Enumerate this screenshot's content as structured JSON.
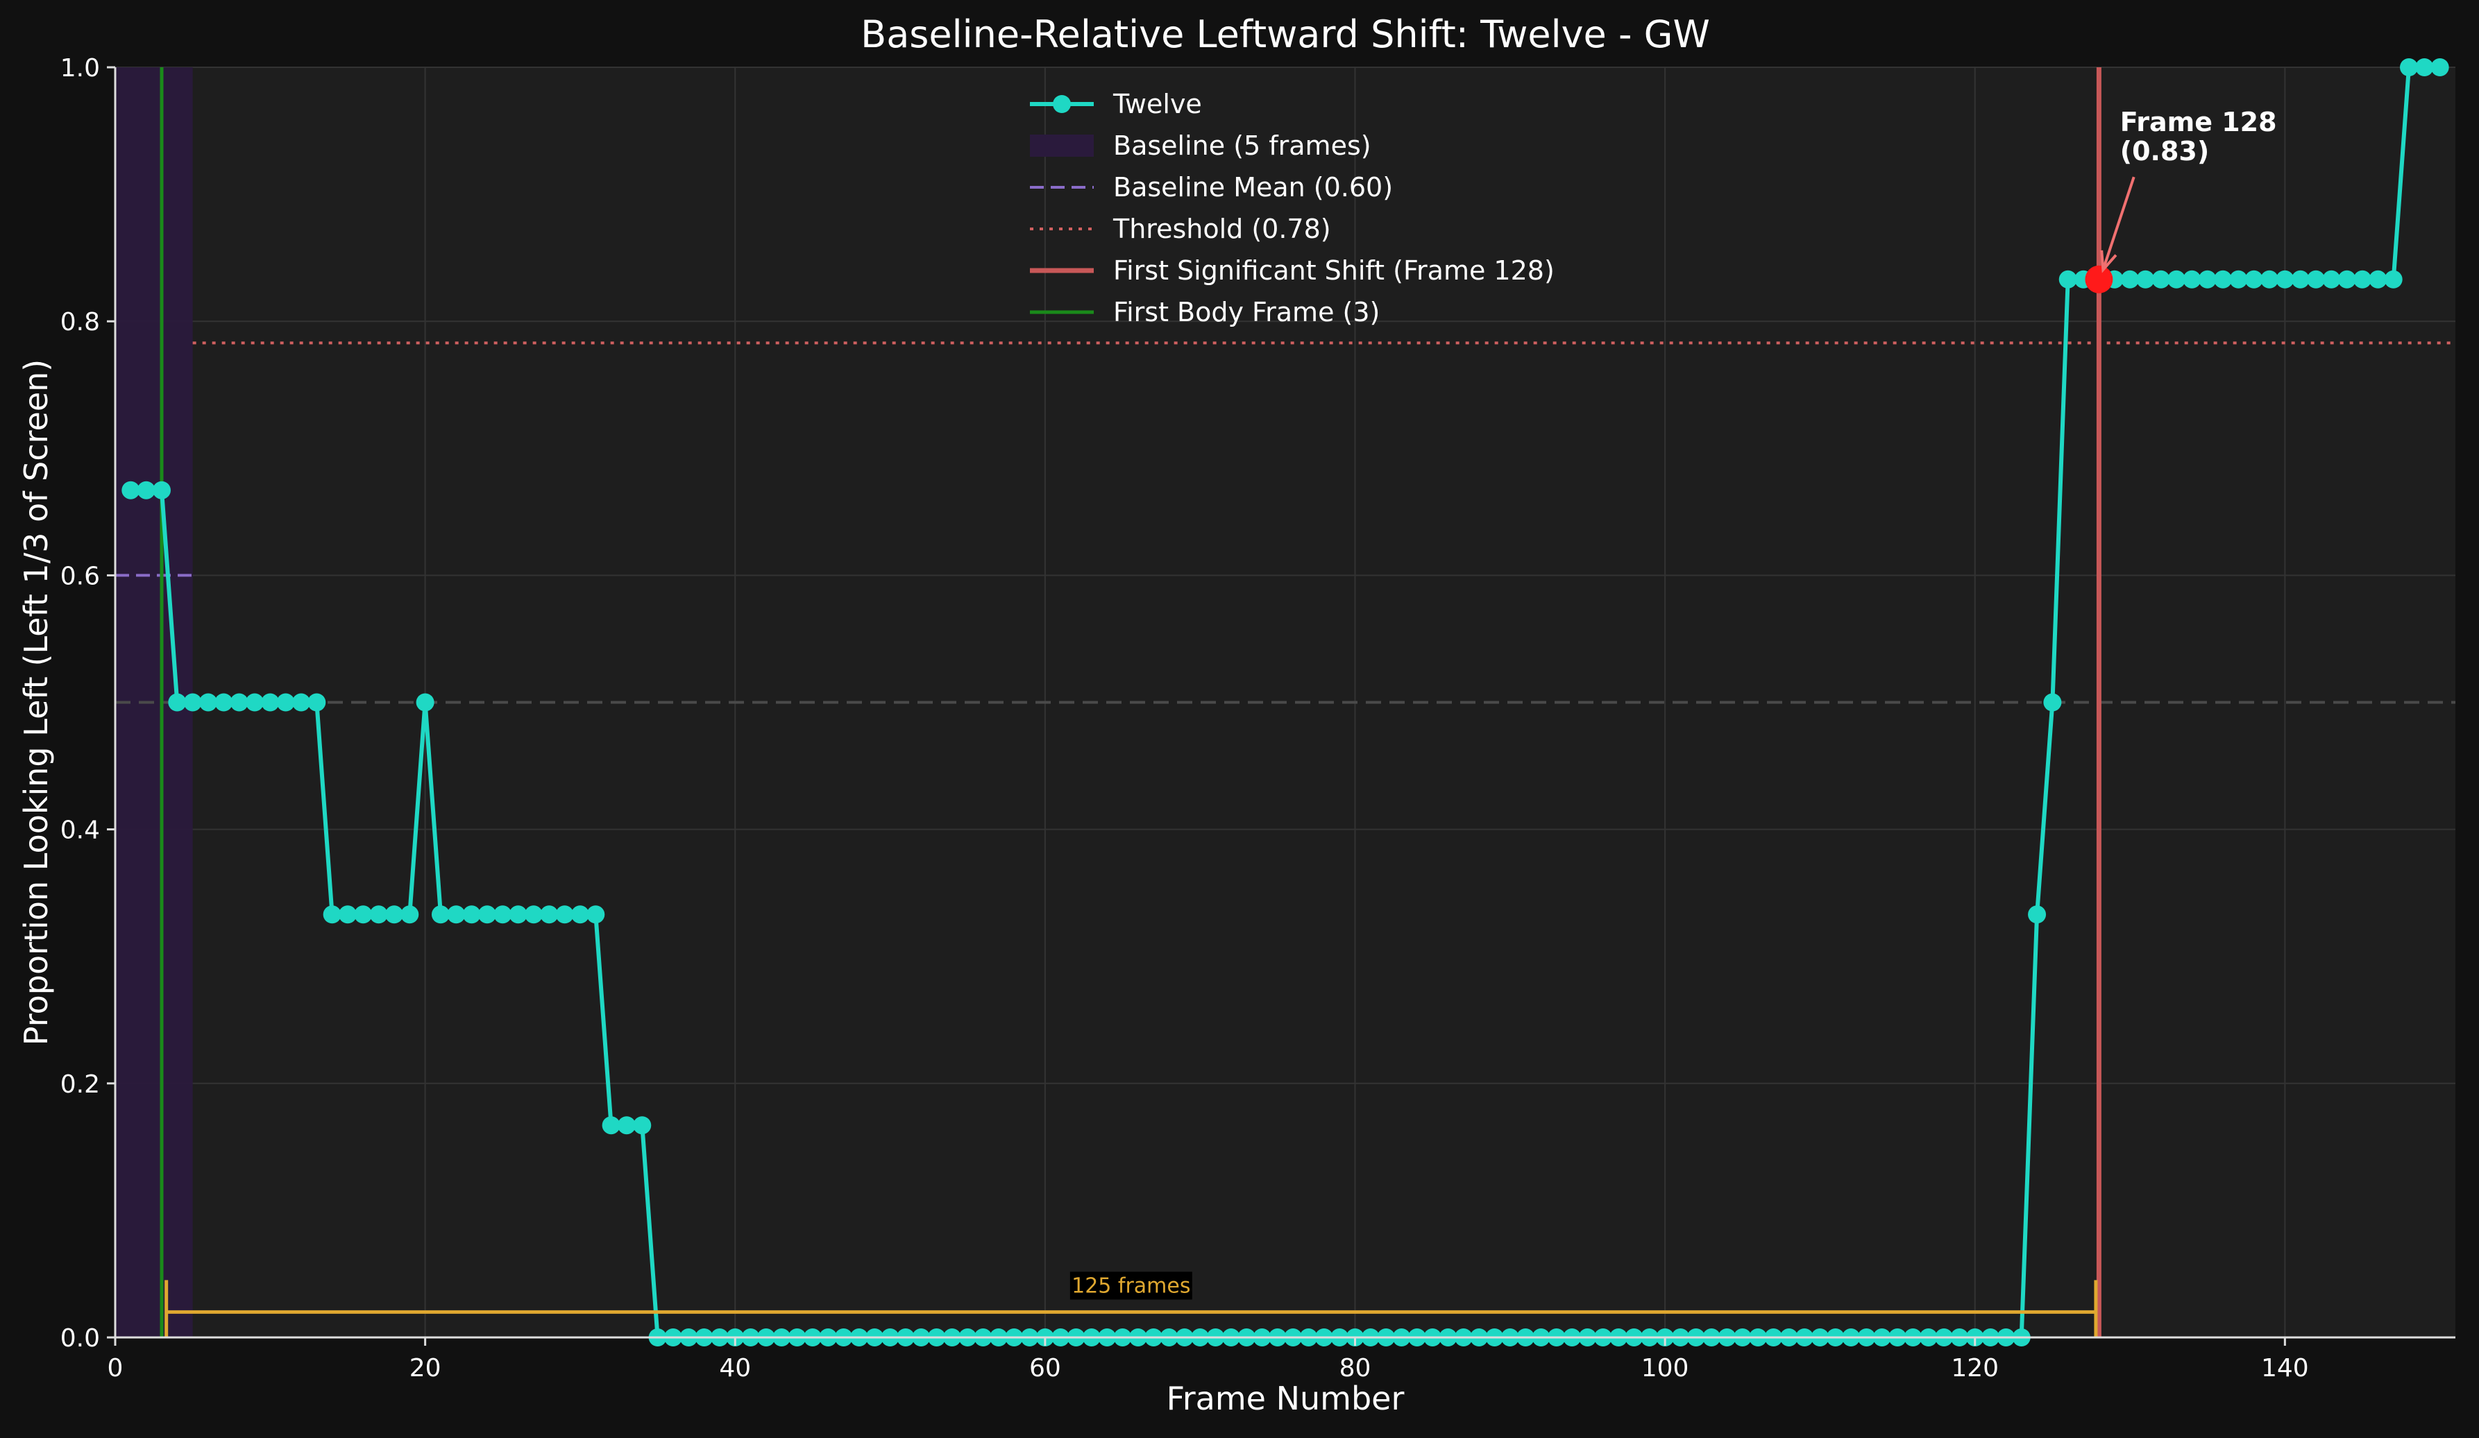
{
  "chart_data": {
    "type": "line",
    "title": "Baseline-Relative Leftward Shift: Twelve - GW",
    "xlabel": "Frame Number",
    "ylabel": "Proportion Looking Left (Left 1/3 of Screen)",
    "xlim": [
      0,
      151
    ],
    "ylim": [
      0,
      1
    ],
    "xticks": [
      0,
      20,
      40,
      60,
      80,
      100,
      120,
      140
    ],
    "yticks": [
      "0.0",
      "0.2",
      "0.4",
      "0.6",
      "0.8",
      "1.0"
    ],
    "grid": true,
    "legend_position": "top-center",
    "series": [
      {
        "name": "Twelve",
        "color": "#1fd8c4",
        "x": [
          1,
          2,
          3,
          4,
          5,
          6,
          7,
          8,
          9,
          10,
          11,
          12,
          13,
          14,
          15,
          16,
          17,
          18,
          19,
          20,
          21,
          22,
          23,
          24,
          25,
          26,
          27,
          28,
          29,
          30,
          31,
          32,
          33,
          34,
          35,
          36,
          37,
          38,
          39,
          40,
          41,
          42,
          43,
          44,
          45,
          46,
          47,
          48,
          49,
          50,
          51,
          52,
          53,
          54,
          55,
          56,
          57,
          58,
          59,
          60,
          61,
          62,
          63,
          64,
          65,
          66,
          67,
          68,
          69,
          70,
          71,
          72,
          73,
          74,
          75,
          76,
          77,
          78,
          79,
          80,
          81,
          82,
          83,
          84,
          85,
          86,
          87,
          88,
          89,
          90,
          91,
          92,
          93,
          94,
          95,
          96,
          97,
          98,
          99,
          100,
          101,
          102,
          103,
          104,
          105,
          106,
          107,
          108,
          109,
          110,
          111,
          112,
          113,
          114,
          115,
          116,
          117,
          118,
          119,
          120,
          121,
          122,
          123,
          124,
          125,
          126,
          127,
          128,
          129,
          130,
          131,
          132,
          133,
          134,
          135,
          136,
          137,
          138,
          139,
          140,
          141,
          142,
          143,
          144,
          145,
          146,
          147,
          148,
          149,
          150
        ],
        "y": [
          0.667,
          0.667,
          0.667,
          0.5,
          0.5,
          0.5,
          0.5,
          0.5,
          0.5,
          0.5,
          0.5,
          0.5,
          0.5,
          0.333,
          0.333,
          0.333,
          0.333,
          0.333,
          0.333,
          0.5,
          0.333,
          0.333,
          0.333,
          0.333,
          0.333,
          0.333,
          0.333,
          0.333,
          0.333,
          0.333,
          0.333,
          0.167,
          0.167,
          0.167,
          0,
          0,
          0,
          0,
          0,
          0,
          0,
          0,
          0,
          0,
          0,
          0,
          0,
          0,
          0,
          0,
          0,
          0,
          0,
          0,
          0,
          0,
          0,
          0,
          0,
          0,
          0,
          0,
          0,
          0,
          0,
          0,
          0,
          0,
          0,
          0,
          0,
          0,
          0,
          0,
          0,
          0,
          0,
          0,
          0,
          0,
          0,
          0,
          0,
          0,
          0,
          0,
          0,
          0,
          0,
          0,
          0,
          0,
          0,
          0,
          0,
          0,
          0,
          0,
          0,
          0,
          0,
          0,
          0,
          0,
          0,
          0,
          0,
          0,
          0,
          0,
          0,
          0,
          0,
          0,
          0,
          0,
          0,
          0,
          0,
          0,
          0,
          0,
          0,
          0.333,
          0.5,
          0.833,
          0.833,
          0.833,
          0.833,
          0.833,
          0.833,
          0.833,
          0.833,
          0.833,
          0.833,
          0.833,
          0.833,
          0.833,
          0.833,
          0.833,
          0.833,
          0.833,
          0.833,
          0.833,
          0.833,
          0.833,
          0.833,
          1,
          1,
          1
        ]
      }
    ],
    "baseline": {
      "label": "Baseline (5 frames)",
      "x_start": 0,
      "x_end": 5,
      "color": "#2a1a3c"
    },
    "baseline_mean": {
      "label": "Baseline Mean (0.60)",
      "value": 0.6,
      "x_start": 0,
      "x_end": 5,
      "color": "#8a6cc8"
    },
    "threshold": {
      "label": "Threshold (0.78)",
      "value": 0.783,
      "x_start": 5,
      "x_end": 151,
      "color": "#d06060"
    },
    "reference_line": {
      "value": 0.5,
      "color": "#4a4a4a"
    },
    "first_shift": {
      "label": "First Significant Shift (Frame 128)",
      "frame": 128,
      "value": 0.833,
      "color": "#c85858",
      "marker_color": "#ff1a1a"
    },
    "first_body_frame": {
      "label": "First Body Frame (3)",
      "frame": 3,
      "color": "#1a8a1a"
    },
    "annotation": {
      "line1": "Frame 128",
      "line2": "(0.83)",
      "text_x": 129,
      "text_y": 0.93,
      "arrow_color": "#f07070"
    },
    "bracket": {
      "label": "125 frames",
      "x_start": 3.3,
      "x_end": 127.8,
      "y": 0.02,
      "color": "#e0a830"
    }
  }
}
